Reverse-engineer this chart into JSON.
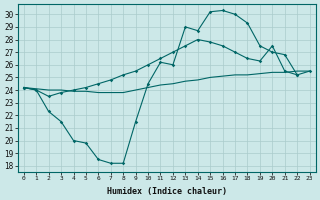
{
  "xlabel": "Humidex (Indice chaleur)",
  "background_color": "#cce8e8",
  "grid_color": "#aacccc",
  "line_color": "#006666",
  "xlim": [
    -0.5,
    23.5
  ],
  "ylim": [
    17.5,
    30.8
  ],
  "xtick_vals": [
    0,
    1,
    2,
    3,
    4,
    5,
    6,
    7,
    8,
    9,
    10,
    11,
    12,
    13,
    14,
    15,
    16,
    17,
    18,
    19,
    20,
    21,
    22,
    23
  ],
  "ytick_vals": [
    18,
    19,
    20,
    21,
    22,
    23,
    24,
    25,
    26,
    27,
    28,
    29,
    30
  ],
  "line1_x": [
    0,
    1,
    2,
    3,
    4,
    5,
    6,
    7,
    8,
    9,
    10,
    11,
    12,
    13,
    14,
    15,
    16,
    17,
    18,
    19,
    20,
    21,
    22
  ],
  "line1_y": [
    24.2,
    24.0,
    22.3,
    21.5,
    20.0,
    19.8,
    18.5,
    18.2,
    18.2,
    21.5,
    24.5,
    26.2,
    26.0,
    29.0,
    28.7,
    30.2,
    30.3,
    30.0,
    29.3,
    27.5,
    27.0,
    26.8,
    25.2
  ],
  "line2_x": [
    0,
    1,
    2,
    3,
    4,
    5,
    6,
    7,
    8,
    9,
    10,
    11,
    12,
    13,
    14,
    15,
    16,
    17,
    18,
    19,
    20,
    21,
    22,
    23
  ],
  "line2_y": [
    24.2,
    24.0,
    23.5,
    23.8,
    24.0,
    24.2,
    24.5,
    24.8,
    25.2,
    25.5,
    26.0,
    26.5,
    27.0,
    27.5,
    28.0,
    27.8,
    27.5,
    27.0,
    26.5,
    26.3,
    27.5,
    25.5,
    25.2,
    25.5
  ],
  "line3_x": [
    0,
    1,
    2,
    3,
    4,
    5,
    6,
    7,
    8,
    9,
    10,
    11,
    12,
    13,
    14,
    15,
    16,
    17,
    18,
    19,
    20,
    21,
    22,
    23
  ],
  "line3_y": [
    24.2,
    24.1,
    24.0,
    24.0,
    23.9,
    23.9,
    23.8,
    23.8,
    23.8,
    24.0,
    24.2,
    24.4,
    24.5,
    24.7,
    24.8,
    25.0,
    25.1,
    25.2,
    25.2,
    25.3,
    25.4,
    25.4,
    25.5,
    25.5
  ]
}
